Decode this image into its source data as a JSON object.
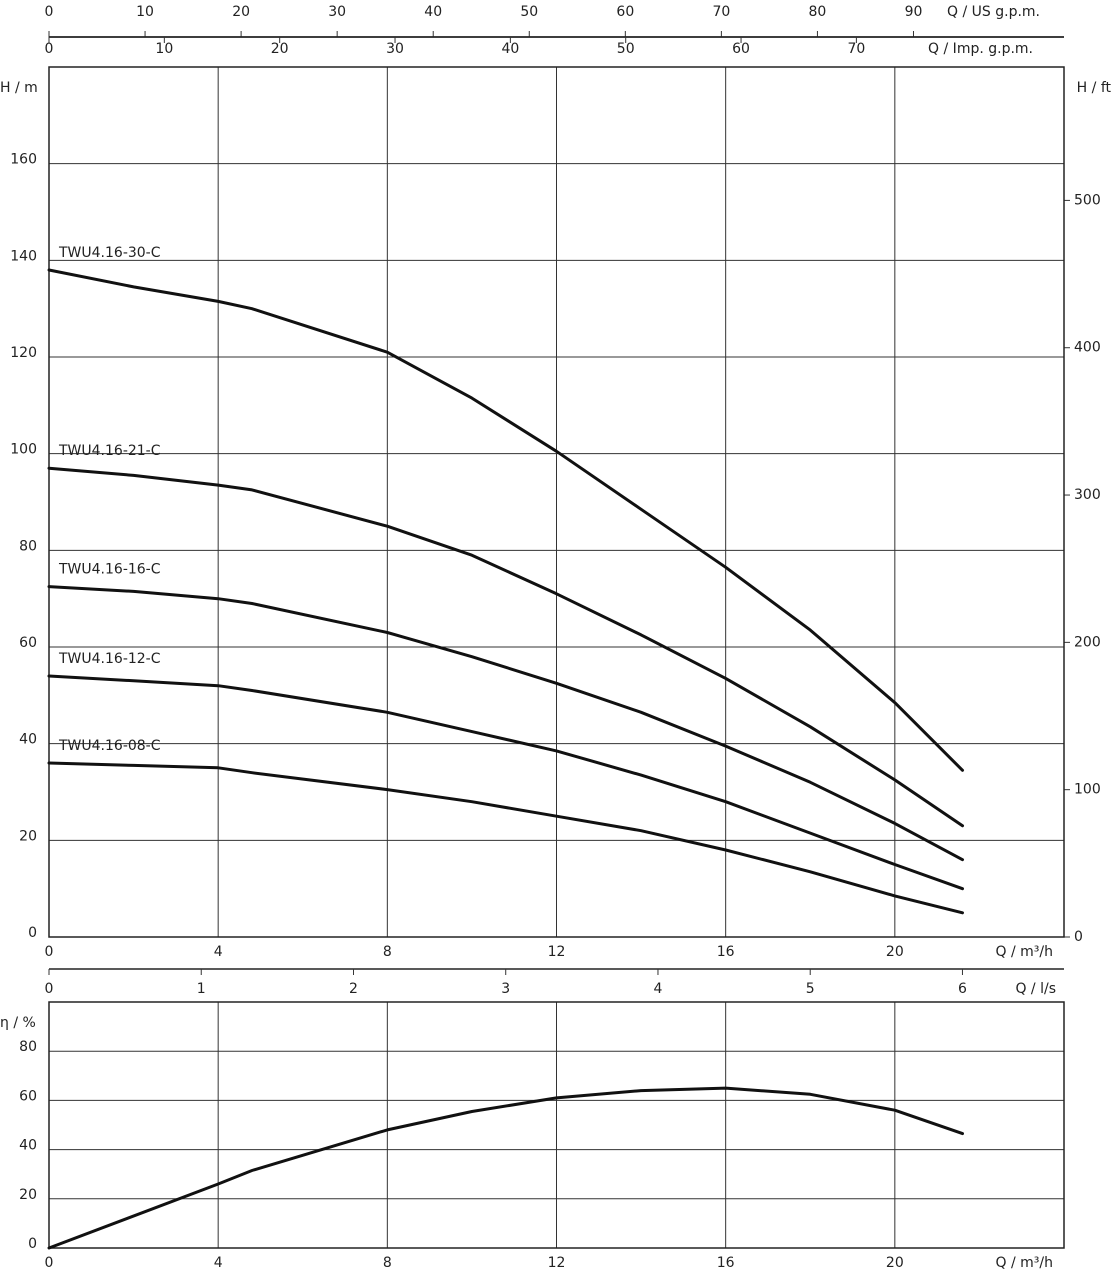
{
  "chart_data": [
    {
      "type": "line",
      "x": [
        0,
        2,
        4,
        4.8,
        8,
        10,
        12,
        14,
        16,
        18,
        20,
        21.6
      ],
      "series": [
        {
          "name": "TWU4.16-30-C",
          "color": "#111111",
          "values": [
            138,
            134.5,
            131.5,
            130,
            121,
            111.5,
            100.5,
            88.5,
            76.5,
            63.5,
            48.5,
            34.5
          ]
        },
        {
          "name": "TWU4.16-21-C",
          "color": "#111111",
          "values": [
            97,
            95.5,
            93.5,
            92.5,
            85,
            79,
            71,
            62.5,
            53.5,
            43.5,
            32.5,
            23
          ]
        },
        {
          "name": "TWU4.16-16-C",
          "color": "#111111",
          "values": [
            72.5,
            71.5,
            70,
            69,
            63,
            58,
            52.5,
            46.5,
            39.5,
            32,
            23.5,
            16
          ]
        },
        {
          "name": "TWU4.16-12-C",
          "color": "#111111",
          "values": [
            54,
            53,
            52,
            51,
            46.5,
            42.5,
            38.5,
            33.5,
            28,
            21.5,
            15,
            10
          ]
        },
        {
          "name": "TWU4.16-08-C",
          "color": "#111111",
          "values": [
            36,
            35.5,
            35,
            34,
            30.5,
            28,
            25,
            22,
            18,
            13.5,
            8.5,
            5
          ]
        }
      ],
      "x_label": "Q / m³/h",
      "y_label": "H / m",
      "y2_label": "H / ft",
      "xlim": [
        0,
        24
      ],
      "xticks": [
        0,
        4,
        8,
        12,
        16,
        20
      ],
      "ylim": [
        0,
        180
      ],
      "yticks": [
        0,
        20,
        40,
        60,
        80,
        100,
        120,
        140,
        160
      ],
      "y2lim": [
        0,
        590.55
      ],
      "y2ticks": [
        0,
        100,
        200,
        300,
        400,
        500
      ],
      "grid": true,
      "secondary_x_axes": [
        {
          "label": "Q / US g.p.m.",
          "xlim": [
            0,
            105.67
          ],
          "xticks": [
            0,
            10,
            20,
            30,
            40,
            50,
            60,
            70,
            80,
            90
          ]
        },
        {
          "label": "Q / Imp. g.p.m.",
          "xlim": [
            0,
            88.0
          ],
          "xticks": [
            0,
            10,
            20,
            30,
            40,
            50,
            60,
            70
          ]
        },
        {
          "label": "Q / l/s",
          "xlim": [
            0,
            6.667
          ],
          "xticks": [
            0,
            1,
            2,
            3,
            4,
            5,
            6
          ]
        }
      ]
    },
    {
      "type": "line",
      "x": [
        0,
        4,
        4.8,
        8,
        10,
        12,
        14,
        16,
        18,
        20,
        21.6
      ],
      "series": [
        {
          "color": "#111111",
          "values": [
            0,
            26,
            31.5,
            48,
            55.5,
            61,
            64,
            65,
            62.5,
            56,
            46.5
          ]
        }
      ],
      "x_label": "Q / m³/h",
      "y_label": "η / %",
      "xlim": [
        0,
        24
      ],
      "xticks": [
        0,
        4,
        8,
        12,
        16,
        20
      ],
      "ylim": [
        0,
        100
      ],
      "yticks": [
        0,
        20,
        40,
        60,
        80
      ],
      "grid": true
    }
  ]
}
